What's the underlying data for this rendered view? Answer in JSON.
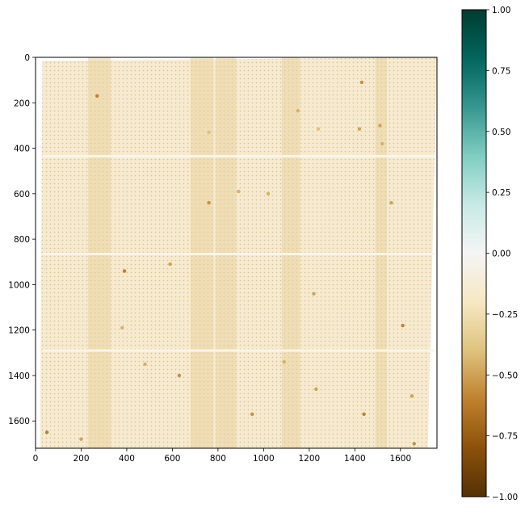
{
  "chart_data": [
    {
      "type": "heatmap",
      "title": "",
      "xlabel": "",
      "ylabel": "",
      "xlim": [
        0,
        1760
      ],
      "ylim": [
        1720,
        0
      ],
      "xticks": [
        0,
        200,
        400,
        600,
        800,
        1000,
        1200,
        1400,
        1600
      ],
      "yticks": [
        0,
        200,
        400,
        600,
        800,
        1000,
        1200,
        1400,
        1600
      ],
      "grid": false,
      "colormap": "BrBG",
      "typical_value": -0.15,
      "band_boundaries_y": [
        435,
        865,
        1290
      ],
      "darker_vertical_bands_x": [
        [
          230,
          330
        ],
        [
          680,
          780
        ],
        [
          790,
          880
        ],
        [
          1080,
          1160
        ],
        [
          1490,
          1540
        ]
      ],
      "spots": [
        {
          "x": 270,
          "y": 170,
          "v": -0.6
        },
        {
          "x": 1430,
          "y": 110,
          "v": -0.55
        },
        {
          "x": 1510,
          "y": 300,
          "v": -0.5
        },
        {
          "x": 1420,
          "y": 315,
          "v": -0.5
        },
        {
          "x": 1520,
          "y": 380,
          "v": -0.45
        },
        {
          "x": 1150,
          "y": 235,
          "v": -0.45
        },
        {
          "x": 1240,
          "y": 315,
          "v": -0.4
        },
        {
          "x": 760,
          "y": 330,
          "v": -0.4
        },
        {
          "x": 760,
          "y": 640,
          "v": -0.55
        },
        {
          "x": 1020,
          "y": 600,
          "v": -0.45
        },
        {
          "x": 1560,
          "y": 640,
          "v": -0.5
        },
        {
          "x": 890,
          "y": 590,
          "v": -0.45
        },
        {
          "x": 390,
          "y": 940,
          "v": -0.6
        },
        {
          "x": 590,
          "y": 910,
          "v": -0.5
        },
        {
          "x": 1220,
          "y": 1040,
          "v": -0.5
        },
        {
          "x": 1610,
          "y": 1180,
          "v": -0.6
        },
        {
          "x": 380,
          "y": 1190,
          "v": -0.45
        },
        {
          "x": 630,
          "y": 1400,
          "v": -0.55
        },
        {
          "x": 1440,
          "y": 1570,
          "v": -0.6
        },
        {
          "x": 1650,
          "y": 1490,
          "v": -0.5
        },
        {
          "x": 950,
          "y": 1570,
          "v": -0.55
        },
        {
          "x": 1230,
          "y": 1460,
          "v": -0.5
        },
        {
          "x": 1090,
          "y": 1340,
          "v": -0.45
        },
        {
          "x": 50,
          "y": 1650,
          "v": -0.6
        },
        {
          "x": 200,
          "y": 1680,
          "v": -0.5
        },
        {
          "x": 1660,
          "y": 1700,
          "v": -0.55
        },
        {
          "x": 480,
          "y": 1350,
          "v": -0.45
        }
      ]
    },
    {
      "type": "colorbar",
      "colormap": "BrBG",
      "vmin": -1.0,
      "vmax": 1.0,
      "ticks": [
        "1.00",
        "0.75",
        "0.50",
        "0.25",
        "0.00",
        "−0.25",
        "−0.50",
        "−0.75",
        "−1.00"
      ],
      "stops": [
        "#543005",
        "#8c510a",
        "#bf812d",
        "#dfc27d",
        "#f6e8c3",
        "#f5f5f5",
        "#c7eae5",
        "#80cdc1",
        "#35978f",
        "#01665e",
        "#003c30"
      ]
    }
  ]
}
